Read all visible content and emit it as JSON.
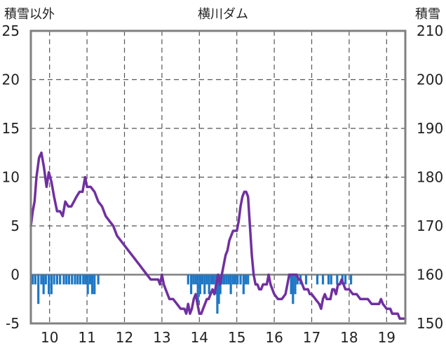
{
  "chart_data": {
    "type": "line",
    "title": "横川ダム",
    "left_axis_label": "積雪以外",
    "right_axis_label": "積雪",
    "x_ticks": [
      "10",
      "11",
      "12",
      "13",
      "14",
      "15",
      "16",
      "17",
      "18",
      "19"
    ],
    "x_range": [
      9.5,
      19.5
    ],
    "y_left": {
      "ylim": [
        -5,
        25
      ],
      "ticks": [
        "-5",
        "0",
        "5",
        "10",
        "15",
        "20",
        "25"
      ]
    },
    "y_right": {
      "ylim": [
        150,
        210
      ],
      "ticks": [
        "150",
        "160",
        "170",
        "180",
        "190",
        "200",
        "210"
      ]
    },
    "grid": "dashed",
    "series": [
      {
        "kind": "bars",
        "axis": "left",
        "color": "#1f77c4",
        "points": [
          [
            9.55,
            -1
          ],
          [
            9.62,
            -1
          ],
          [
            9.7,
            -3
          ],
          [
            9.78,
            -1
          ],
          [
            9.84,
            -2
          ],
          [
            9.9,
            -1
          ],
          [
            9.98,
            -2
          ],
          [
            10.05,
            -2
          ],
          [
            10.12,
            -1
          ],
          [
            10.2,
            -1
          ],
          [
            10.28,
            -1
          ],
          [
            10.38,
            -1
          ],
          [
            10.45,
            -1
          ],
          [
            10.52,
            -1
          ],
          [
            10.6,
            -1
          ],
          [
            10.68,
            -1
          ],
          [
            10.75,
            -1
          ],
          [
            10.82,
            -1
          ],
          [
            10.9,
            -1
          ],
          [
            10.96,
            -1
          ],
          [
            11.02,
            -2
          ],
          [
            11.08,
            -1
          ],
          [
            11.14,
            -2
          ],
          [
            11.2,
            -2
          ],
          [
            11.3,
            -1
          ],
          [
            13.7,
            -1
          ],
          [
            13.78,
            -2
          ],
          [
            13.84,
            -1
          ],
          [
            13.9,
            -1
          ],
          [
            13.96,
            -3
          ],
          [
            14.02,
            -2
          ],
          [
            14.08,
            -1
          ],
          [
            14.14,
            -2
          ],
          [
            14.2,
            -1
          ],
          [
            14.26,
            -2
          ],
          [
            14.32,
            -1
          ],
          [
            14.38,
            -1
          ],
          [
            14.44,
            -2
          ],
          [
            14.48,
            -4
          ],
          [
            14.52,
            -3
          ],
          [
            14.56,
            -2
          ],
          [
            14.6,
            -1
          ],
          [
            14.66,
            -1
          ],
          [
            14.72,
            -1
          ],
          [
            14.78,
            -1
          ],
          [
            14.84,
            -2
          ],
          [
            14.9,
            -1
          ],
          [
            14.96,
            -1
          ],
          [
            15.02,
            -1
          ],
          [
            15.1,
            -1
          ],
          [
            15.18,
            -2
          ],
          [
            15.24,
            -1
          ],
          [
            15.3,
            -1
          ],
          [
            16.45,
            -2
          ],
          [
            16.5,
            -3
          ],
          [
            16.56,
            -2
          ],
          [
            16.62,
            -1
          ],
          [
            16.7,
            -1
          ],
          [
            16.85,
            -1
          ],
          [
            17.15,
            -1
          ],
          [
            17.3,
            -1
          ],
          [
            17.45,
            -1
          ],
          [
            17.52,
            -1
          ],
          [
            17.68,
            -1
          ],
          [
            17.82,
            -1
          ],
          [
            17.9,
            -1
          ],
          [
            18.05,
            -1
          ]
        ]
      },
      {
        "kind": "line",
        "axis": "right",
        "color": "#7030a0",
        "points": [
          [
            9.5,
            170
          ],
          [
            9.55,
            173
          ],
          [
            9.6,
            175
          ],
          [
            9.65,
            180
          ],
          [
            9.72,
            184
          ],
          [
            9.78,
            185
          ],
          [
            9.85,
            182
          ],
          [
            9.92,
            178
          ],
          [
            9.98,
            181
          ],
          [
            10.05,
            179
          ],
          [
            10.12,
            176
          ],
          [
            10.2,
            173
          ],
          [
            10.28,
            173
          ],
          [
            10.35,
            172
          ],
          [
            10.42,
            175
          ],
          [
            10.5,
            174
          ],
          [
            10.58,
            174
          ],
          [
            10.65,
            175
          ],
          [
            10.72,
            176
          ],
          [
            10.8,
            177
          ],
          [
            10.88,
            177
          ],
          [
            10.95,
            180
          ],
          [
            11.0,
            178
          ],
          [
            11.1,
            178
          ],
          [
            11.2,
            177
          ],
          [
            11.3,
            175
          ],
          [
            11.4,
            174
          ],
          [
            11.5,
            172
          ],
          [
            11.6,
            171
          ],
          [
            11.7,
            170
          ],
          [
            11.8,
            168
          ],
          [
            11.9,
            167
          ],
          [
            12.0,
            166
          ],
          [
            12.1,
            165
          ],
          [
            12.2,
            164
          ],
          [
            12.3,
            163
          ],
          [
            12.4,
            162
          ],
          [
            12.5,
            161
          ],
          [
            12.6,
            160
          ],
          [
            12.7,
            159
          ],
          [
            12.8,
            159
          ],
          [
            12.9,
            159
          ],
          [
            12.95,
            158
          ],
          [
            13.0,
            160
          ],
          [
            13.05,
            158
          ],
          [
            13.1,
            157
          ],
          [
            13.2,
            155
          ],
          [
            13.3,
            155
          ],
          [
            13.4,
            154
          ],
          [
            13.5,
            153
          ],
          [
            13.6,
            153
          ],
          [
            13.65,
            152
          ],
          [
            13.7,
            154
          ],
          [
            13.75,
            152
          ],
          [
            13.8,
            153
          ],
          [
            13.85,
            155
          ],
          [
            13.9,
            156
          ],
          [
            13.95,
            154
          ],
          [
            14.0,
            152
          ],
          [
            14.05,
            152
          ],
          [
            14.1,
            153
          ],
          [
            14.15,
            154
          ],
          [
            14.2,
            155
          ],
          [
            14.25,
            155
          ],
          [
            14.3,
            156
          ],
          [
            14.35,
            157
          ],
          [
            14.4,
            156
          ],
          [
            14.45,
            158
          ],
          [
            14.5,
            160
          ],
          [
            14.55,
            158
          ],
          [
            14.6,
            160
          ],
          [
            14.65,
            162
          ],
          [
            14.7,
            164
          ],
          [
            14.75,
            165
          ],
          [
            14.8,
            167
          ],
          [
            14.85,
            168
          ],
          [
            14.9,
            169
          ],
          [
            14.95,
            169
          ],
          [
            15.0,
            169
          ],
          [
            15.05,
            171
          ],
          [
            15.1,
            174
          ],
          [
            15.15,
            176
          ],
          [
            15.2,
            177
          ],
          [
            15.25,
            177
          ],
          [
            15.3,
            176
          ],
          [
            15.35,
            170
          ],
          [
            15.4,
            164
          ],
          [
            15.45,
            160
          ],
          [
            15.5,
            158
          ],
          [
            15.55,
            158
          ],
          [
            15.6,
            157
          ],
          [
            15.65,
            157
          ],
          [
            15.7,
            158
          ],
          [
            15.75,
            158
          ],
          [
            15.8,
            158
          ],
          [
            15.85,
            160
          ],
          [
            15.9,
            158
          ],
          [
            15.95,
            157
          ],
          [
            16.0,
            156
          ],
          [
            16.1,
            155
          ],
          [
            16.2,
            155
          ],
          [
            16.3,
            156
          ],
          [
            16.35,
            158
          ],
          [
            16.4,
            160
          ],
          [
            16.5,
            160
          ],
          [
            16.6,
            160
          ],
          [
            16.65,
            159
          ],
          [
            16.7,
            159
          ],
          [
            16.75,
            158
          ],
          [
            16.8,
            157
          ],
          [
            16.85,
            157
          ],
          [
            16.9,
            157
          ],
          [
            16.95,
            156
          ],
          [
            17.0,
            156
          ],
          [
            17.1,
            155
          ],
          [
            17.2,
            154
          ],
          [
            17.25,
            153
          ],
          [
            17.3,
            155
          ],
          [
            17.35,
            156
          ],
          [
            17.4,
            155
          ],
          [
            17.45,
            155
          ],
          [
            17.5,
            155
          ],
          [
            17.55,
            157
          ],
          [
            17.6,
            157
          ],
          [
            17.65,
            156
          ],
          [
            17.7,
            158
          ],
          [
            17.75,
            158
          ],
          [
            17.8,
            159
          ],
          [
            17.85,
            158
          ],
          [
            17.9,
            157
          ],
          [
            18.0,
            157
          ],
          [
            18.1,
            156
          ],
          [
            18.2,
            156
          ],
          [
            18.3,
            155
          ],
          [
            18.4,
            155
          ],
          [
            18.5,
            155
          ],
          [
            18.6,
            154
          ],
          [
            18.7,
            154
          ],
          [
            18.8,
            154
          ],
          [
            18.85,
            155
          ],
          [
            18.9,
            154
          ],
          [
            19.0,
            153
          ],
          [
            19.1,
            153
          ],
          [
            19.15,
            152
          ],
          [
            19.3,
            152
          ],
          [
            19.35,
            151
          ],
          [
            19.45,
            151
          ],
          [
            19.5,
            151
          ]
        ]
      }
    ]
  }
}
